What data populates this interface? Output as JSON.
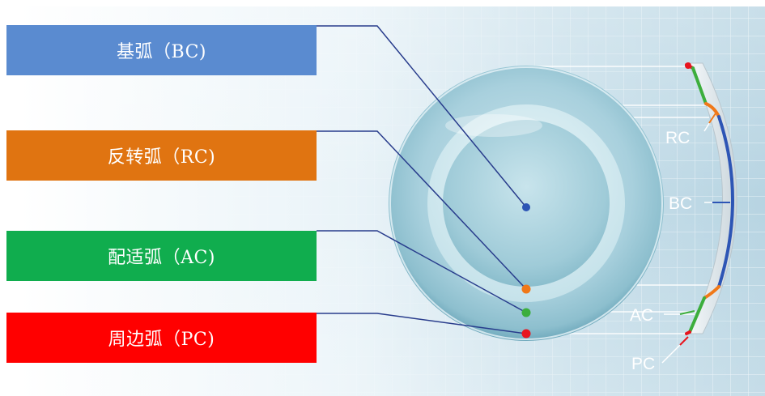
{
  "labels": [
    {
      "id": "bc",
      "text": "基弧（BC)",
      "color": "#5a8bd0"
    },
    {
      "id": "rc",
      "text": "反转弧（RC)",
      "color": "#e07411"
    },
    {
      "id": "ac",
      "text": "配适弧（AC)",
      "color": "#10ad4e"
    },
    {
      "id": "pc",
      "text": "周边弧（PC)",
      "color": "#ff0000"
    }
  ],
  "cross_section_labels": {
    "rc": "RC",
    "bc": "BC",
    "ac": "AC",
    "pc": "PC"
  },
  "colors": {
    "bc": "#2d55b5",
    "rc": "#f07818",
    "ac": "#3cae3c",
    "pc": "#e8141e",
    "leader": "#283c8c"
  }
}
